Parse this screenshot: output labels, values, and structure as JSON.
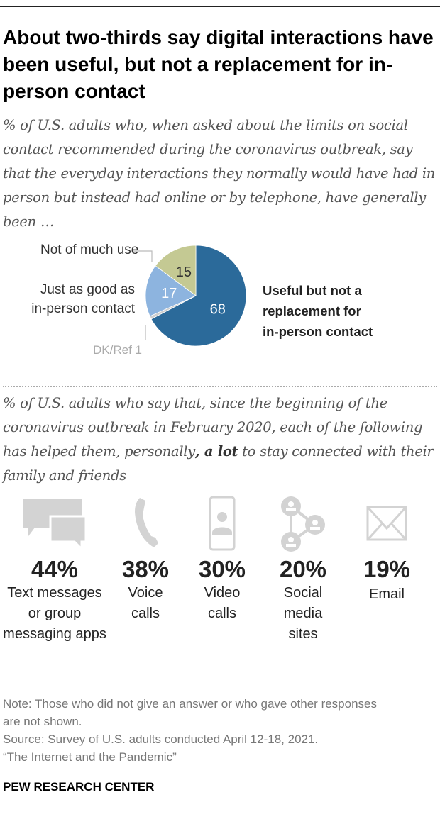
{
  "title": "About two-thirds say digital interactions have been useful, but not a replacement for in-person contact",
  "subtitle1": "% of U.S. adults who, when asked about the limits on social contact recommended during the coronavirus outbreak, say that the everyday interactions they normally would have had in person but instead had online or by telephone, have generally been …",
  "subtitle2_pre": "% of U.S. adults who say that, since the beginning of the coronavirus outbreak in February 2020, each of the following has helped them, personally",
  "subtitle2_bold": ", a lot",
  "subtitle2_post": " to stay connected with their family and friends",
  "chart_data": [
    {
      "type": "pie",
      "slices": [
        {
          "label": "Useful but not a replacement for in-person contact",
          "value": 68,
          "color": "#2b6a9a"
        },
        {
          "label": "DK/Ref",
          "value": 1,
          "color": "#cfcfcf"
        },
        {
          "label": "Just as good as in-person contact",
          "value": 17,
          "color": "#8db4df"
        },
        {
          "label": "Not of much use",
          "value": 15,
          "color": "#c4c993"
        }
      ]
    },
    {
      "type": "table",
      "items": [
        {
          "value": "44%",
          "label": "Text messages or group messaging apps",
          "icon": "chat-bubbles-icon"
        },
        {
          "value": "38%",
          "label": "Voice calls",
          "icon": "phone-icon"
        },
        {
          "value": "30%",
          "label": "Video calls",
          "icon": "video-phone-icon"
        },
        {
          "value": "20%",
          "label": "Social media sites",
          "icon": "social-network-icon"
        },
        {
          "value": "19%",
          "label": "Email",
          "icon": "envelope-icon"
        }
      ]
    }
  ],
  "pie_labels": {
    "not_much": "Not of much use",
    "just_good_1": "Just as good as",
    "just_good_2": "in-person contact",
    "useful_1": "Useful but not a",
    "useful_2": "replacement for",
    "useful_3": "in-person contact",
    "dk": "DK/Ref 1"
  },
  "note": "Note: Those who did not give an answer or who gave other responses are not shown.",
  "source": "Source: Survey of U.S. adults conducted April 12-18, 2021.",
  "report": "“The Internet and the Pandemic”",
  "brand": "PEW RESEARCH CENTER"
}
